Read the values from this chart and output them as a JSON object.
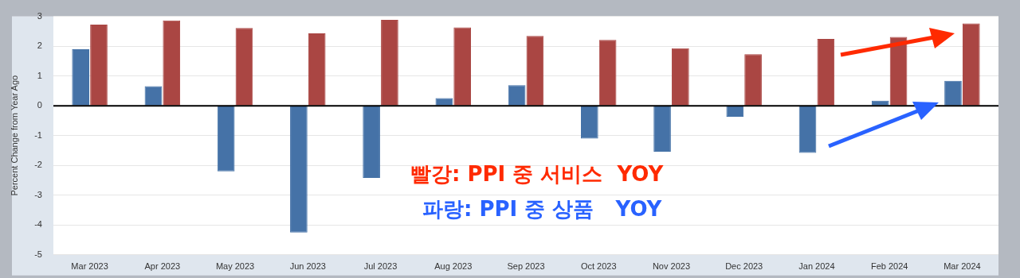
{
  "chart_data": {
    "type": "bar",
    "ylabel": "Percent Change from Year Ago",
    "categories": [
      "Mar 2023",
      "Apr 2023",
      "May 2023",
      "Jun 2023",
      "Jul 2023",
      "Aug 2023",
      "Sep 2023",
      "Oct 2023",
      "Nov 2023",
      "Dec 2023",
      "Jan 2024",
      "Feb 2024",
      "Mar 2024"
    ],
    "series": [
      {
        "color": "#4572a7",
        "values": [
          1.9,
          0.66,
          -2.2,
          -4.25,
          -2.42,
          0.26,
          0.69,
          -1.1,
          -1.54,
          -0.37,
          -1.58,
          0.17,
          0.84
        ]
      },
      {
        "color": "#aa4643",
        "values": [
          2.72,
          2.86,
          2.61,
          2.43,
          2.88,
          2.63,
          2.34,
          2.21,
          1.93,
          1.73,
          2.24,
          2.31,
          2.76
        ]
      }
    ],
    "ylim": [
      -5,
      3
    ],
    "yticks": [
      -5,
      -4,
      -3,
      -2,
      -1,
      0,
      1,
      2,
      3
    ],
    "grid": "y",
    "legend": false,
    "annotations": [
      "빨강: PPI 중 서비스  YOY",
      "파랑: PPI 중 상품   YOY"
    ]
  }
}
